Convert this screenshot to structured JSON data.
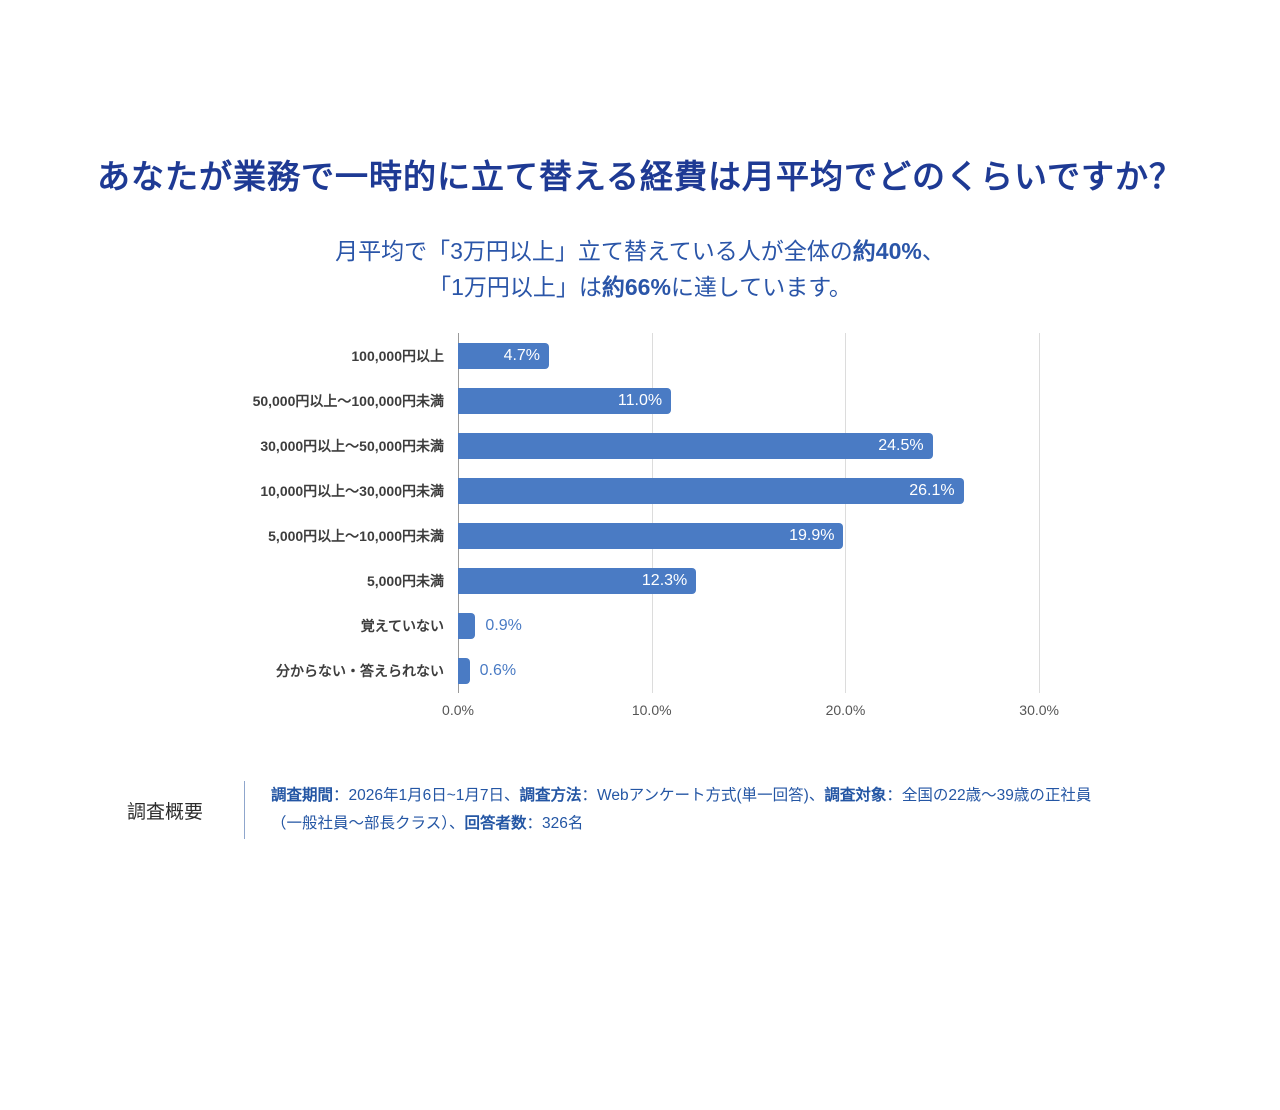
{
  "title": {
    "text": "あなたが業務で一時的に立て替える経費は月平均でどのくらいですか？",
    "color": "#1E3A94"
  },
  "subtitle": {
    "l1_pre": "月平均で「3万円以上」立て替えている人が全体の",
    "l1_bold": "約40%",
    "l1_post": "、",
    "l2_pre": "「1万円以上」は",
    "l2_bold": "約66%",
    "l2_post": "に達しています。"
  },
  "chart_data": {
    "type": "bar",
    "orientation": "horizontal",
    "categories": [
      "100,000円以上",
      "50,000円以上～100,000円未満",
      "30,000円以上～50,000円未満",
      "10,000円以上～30,000円未満",
      "5,000円以上～10,000円未満",
      "5,000円未満",
      "覚えていない",
      "分からない・答えられない"
    ],
    "values": [
      4.7,
      11.0,
      24.5,
      26.1,
      19.9,
      12.3,
      0.9,
      0.6
    ],
    "value_labels": [
      "4.7%",
      "11.0%",
      "24.5%",
      "26.1%",
      "19.9%",
      "12.3%",
      "0.9%",
      "0.6%"
    ],
    "xlim": [
      0,
      35
    ],
    "ticks": [
      {
        "v": 0,
        "label": "0.0%"
      },
      {
        "v": 10,
        "label": "10.0%"
      },
      {
        "v": 20,
        "label": "20.0%"
      },
      {
        "v": 30,
        "label": "30.0%"
      }
    ],
    "grid": true,
    "legend": "none",
    "bar_color": "#4A7BC4",
    "inside_label_color": "#ffffff",
    "outside_label_color": "#4A7BC4",
    "inside_threshold": 4
  },
  "footer": {
    "heading": "調査概要",
    "lines": [
      [
        {
          "t": "調査期間",
          "b": true
        },
        {
          "t": "：2026年1月6日~1月7日、",
          "b": false
        },
        {
          "t": "調査方法",
          "b": true
        },
        {
          "t": "：Webアンケート方式(単一回答)、",
          "b": false
        },
        {
          "t": "調査対象",
          "b": true
        },
        {
          "t": "：全国の22歳～39歳の正社員",
          "b": false
        }
      ],
      [
        {
          "t": "（一般社員～部長クラス）、",
          "b": false
        },
        {
          "t": "回答者数",
          "b": true
        },
        {
          "t": "：326名",
          "b": false
        }
      ]
    ]
  }
}
